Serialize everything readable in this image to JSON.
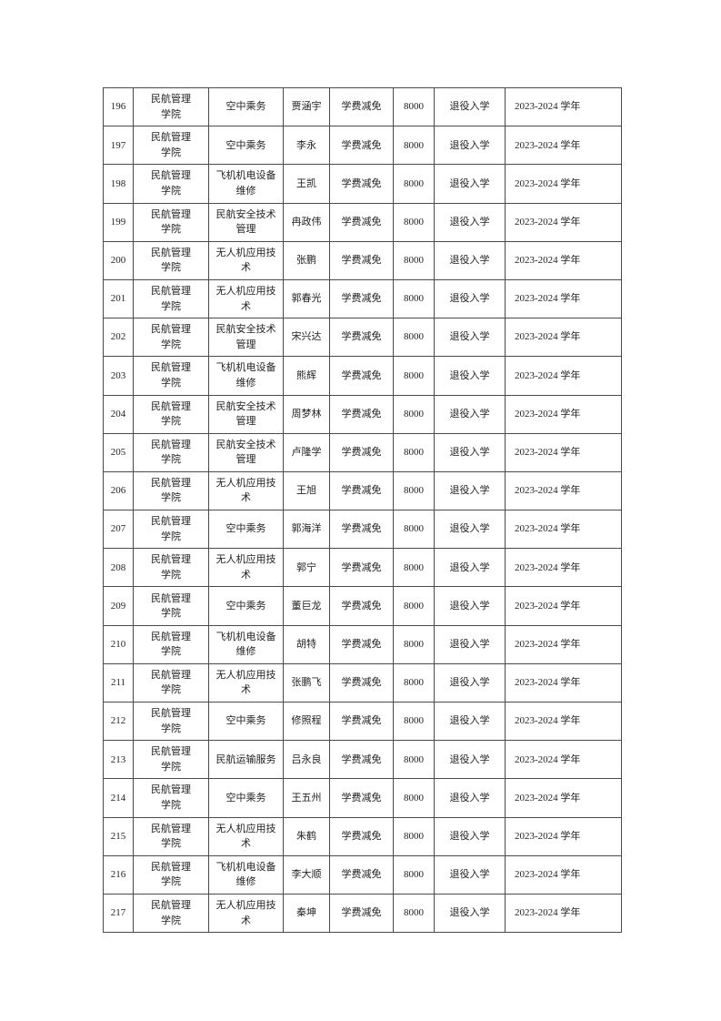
{
  "page": {
    "background_color": "#ffffff",
    "text_color": "#1f1f1f",
    "table_border_color": "#4a4a4a"
  },
  "table": {
    "column_keys": [
      "no",
      "college",
      "major",
      "name",
      "aid_type",
      "amount",
      "category",
      "year"
    ],
    "rows": [
      {
        "no": "196",
        "college": "民航管理学院",
        "major": "空中乘务",
        "name": "贾涵宇",
        "aid_type": "学费减免",
        "amount": "8000",
        "category": "退役入学",
        "year": "2023-2024 学年"
      },
      {
        "no": "197",
        "college": "民航管理学院",
        "major": "空中乘务",
        "name": "李永",
        "aid_type": "学费减免",
        "amount": "8000",
        "category": "退役入学",
        "year": "2023-2024 学年"
      },
      {
        "no": "198",
        "college": "民航管理学院",
        "major": "飞机机电设备维修",
        "name": "王凯",
        "aid_type": "学费减免",
        "amount": "8000",
        "category": "退役入学",
        "year": "2023-2024 学年"
      },
      {
        "no": "199",
        "college": "民航管理学院",
        "major": "民航安全技术管理",
        "name": "冉政伟",
        "aid_type": "学费减免",
        "amount": "8000",
        "category": "退役入学",
        "year": "2023-2024 学年"
      },
      {
        "no": "200",
        "college": "民航管理学院",
        "major": "无人机应用技术",
        "name": "张鹏",
        "aid_type": "学费减免",
        "amount": "8000",
        "category": "退役入学",
        "year": "2023-2024 学年"
      },
      {
        "no": "201",
        "college": "民航管理学院",
        "major": "无人机应用技术",
        "name": "郭春光",
        "aid_type": "学费减免",
        "amount": "8000",
        "category": "退役入学",
        "year": "2023-2024 学年"
      },
      {
        "no": "202",
        "college": "民航管理学院",
        "major": "民航安全技术管理",
        "name": "宋兴达",
        "aid_type": "学费减免",
        "amount": "8000",
        "category": "退役入学",
        "year": "2023-2024 学年"
      },
      {
        "no": "203",
        "college": "民航管理学院",
        "major": "飞机机电设备维修",
        "name": "熊辉",
        "aid_type": "学费减免",
        "amount": "8000",
        "category": "退役入学",
        "year": "2023-2024 学年"
      },
      {
        "no": "204",
        "college": "民航管理学院",
        "major": "民航安全技术管理",
        "name": "周梦林",
        "aid_type": "学费减免",
        "amount": "8000",
        "category": "退役入学",
        "year": "2023-2024 学年"
      },
      {
        "no": "205",
        "college": "民航管理学院",
        "major": "民航安全技术管理",
        "name": "卢隆学",
        "aid_type": "学费减免",
        "amount": "8000",
        "category": "退役入学",
        "year": "2023-2024 学年"
      },
      {
        "no": "206",
        "college": "民航管理学院",
        "major": "无人机应用技术",
        "name": "王旭",
        "aid_type": "学费减免",
        "amount": "8000",
        "category": "退役入学",
        "year": "2023-2024 学年"
      },
      {
        "no": "207",
        "college": "民航管理学院",
        "major": "空中乘务",
        "name": "郭海洋",
        "aid_type": "学费减免",
        "amount": "8000",
        "category": "退役入学",
        "year": "2023-2024 学年"
      },
      {
        "no": "208",
        "college": "民航管理学院",
        "major": "无人机应用技术",
        "name": "郭宁",
        "aid_type": "学费减免",
        "amount": "8000",
        "category": "退役入学",
        "year": "2023-2024 学年"
      },
      {
        "no": "209",
        "college": "民航管理学院",
        "major": "空中乘务",
        "name": "董巨龙",
        "aid_type": "学费减免",
        "amount": "8000",
        "category": "退役入学",
        "year": "2023-2024 学年"
      },
      {
        "no": "210",
        "college": "民航管理学院",
        "major": "飞机机电设备维修",
        "name": "胡特",
        "aid_type": "学费减免",
        "amount": "8000",
        "category": "退役入学",
        "year": "2023-2024 学年"
      },
      {
        "no": "211",
        "college": "民航管理学院",
        "major": "无人机应用技术",
        "name": "张鹏飞",
        "aid_type": "学费减免",
        "amount": "8000",
        "category": "退役入学",
        "year": "2023-2024 学年"
      },
      {
        "no": "212",
        "college": "民航管理学院",
        "major": "空中乘务",
        "name": "修照程",
        "aid_type": "学费减免",
        "amount": "8000",
        "category": "退役入学",
        "year": "2023-2024 学年"
      },
      {
        "no": "213",
        "college": "民航管理学院",
        "major": "民航运输服务",
        "name": "吕永良",
        "aid_type": "学费减免",
        "amount": "8000",
        "category": "退役入学",
        "year": "2023-2024 学年"
      },
      {
        "no": "214",
        "college": "民航管理学院",
        "major": "空中乘务",
        "name": "王五州",
        "aid_type": "学费减免",
        "amount": "8000",
        "category": "退役入学",
        "year": "2023-2024 学年"
      },
      {
        "no": "215",
        "college": "民航管理学院",
        "major": "无人机应用技术",
        "name": "朱鹤",
        "aid_type": "学费减免",
        "amount": "8000",
        "category": "退役入学",
        "year": "2023-2024 学年"
      },
      {
        "no": "216",
        "college": "民航管理学院",
        "major": "飞机机电设备维修",
        "name": "李大顺",
        "aid_type": "学费减免",
        "amount": "8000",
        "category": "退役入学",
        "year": "2023-2024 学年"
      },
      {
        "no": "217",
        "college": "民航管理学院",
        "major": "无人机应用技术",
        "name": "秦坤",
        "aid_type": "学费减免",
        "amount": "8000",
        "category": "退役入学",
        "year": "2023-2024 学年"
      }
    ]
  }
}
